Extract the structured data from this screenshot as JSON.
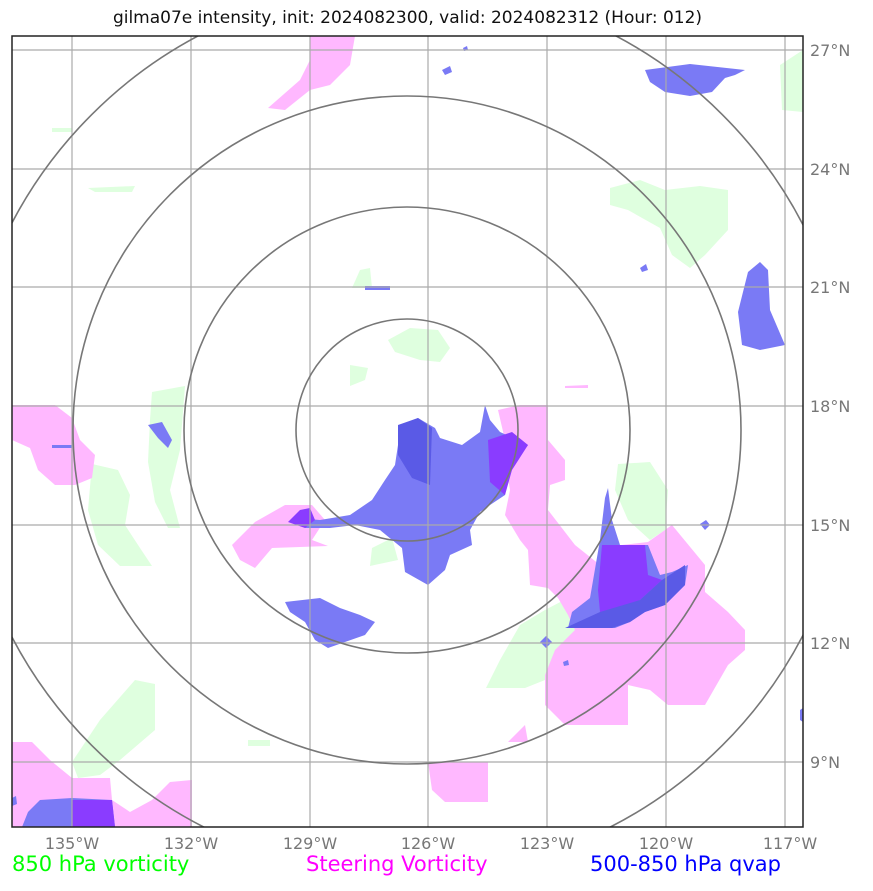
{
  "title": "gilma07e intensity, init: 2024082300, valid: 2024082312 (Hour: 012)",
  "chart_data": {
    "type": "map",
    "title": "gilma07e intensity, init: 2024082300, valid: 2024082312 (Hour: 012)",
    "lon_ticks": [
      "135°W",
      "132°W",
      "129°W",
      "126°W",
      "123°W",
      "120°W",
      "117°W"
    ],
    "lat_ticks": [
      "27°N",
      "24°N",
      "21°N",
      "18°N",
      "15°N",
      "12°N",
      "9°N"
    ],
    "lon_range": [
      -136.5,
      -116.5
    ],
    "lat_range": [
      7.5,
      27.3
    ],
    "storm_center": {
      "lon": -126.6,
      "lat": 17.4
    },
    "range_rings_deg": [
      2.8,
      5.6,
      8.4,
      11.2
    ],
    "grid": true,
    "legend": [
      {
        "label": "850 hPa vorticity",
        "color": "#00ff00"
      },
      {
        "label": "Steering Vorticity",
        "color": "#ff00ff"
      },
      {
        "label": "500-850 hPa qvap",
        "color": "#0000ff"
      }
    ]
  },
  "colors": {
    "green_fill": "#dfffdf",
    "magenta_fill": "#ffb8ff",
    "blue_fill": "#7a7af5",
    "blue_dark": "#5a5ae6",
    "purple_fill": "#8a3cff",
    "grid": "#aaaaaa",
    "ring": "#777777"
  }
}
